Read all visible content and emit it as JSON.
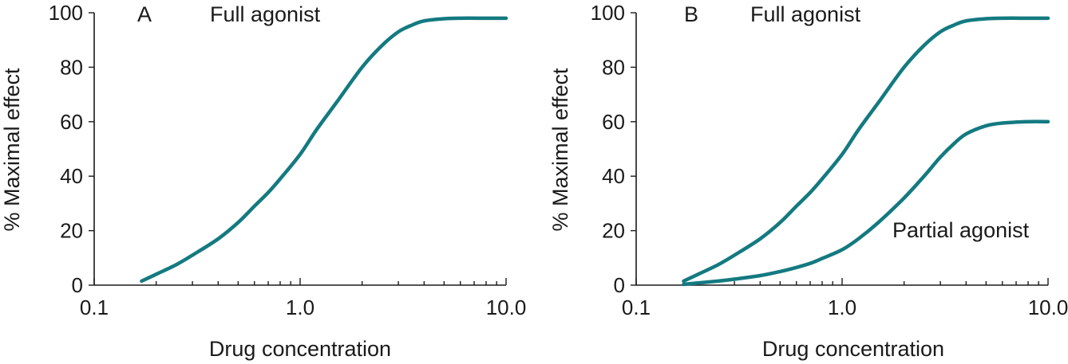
{
  "colors": {
    "curve": "#137A80",
    "axis": "#1a1a1a"
  },
  "chart_data": [
    {
      "type": "line",
      "panel_label": "A",
      "xlabel": "Drug concentration",
      "ylabel": "% Maximal effect",
      "xscale": "log",
      "xlim": [
        0.1,
        10.0
      ],
      "ylim": [
        0,
        100
      ],
      "xticks": [
        0.1,
        1.0,
        10.0
      ],
      "xtick_labels": [
        "0.1",
        "1.0",
        "10.0"
      ],
      "yticks": [
        0,
        20,
        40,
        60,
        80,
        100
      ],
      "ytick_labels": [
        "0",
        "20",
        "40",
        "60",
        "80",
        "100"
      ],
      "grid": false,
      "series": [
        {
          "name": "Full agonist",
          "x": [
            0.17,
            0.2,
            0.25,
            0.3,
            0.4,
            0.5,
            0.6,
            0.7,
            0.8,
            1.0,
            1.2,
            1.5,
            2.0,
            2.5,
            3.0,
            3.5,
            4.0,
            5.0,
            6.0,
            8.0,
            10.0
          ],
          "y": [
            1.5,
            4,
            7.5,
            11,
            17,
            23,
            29,
            34,
            39,
            48,
            57,
            67,
            80,
            88,
            93,
            95.5,
            97,
            97.8,
            98,
            98,
            98
          ]
        }
      ]
    },
    {
      "type": "line",
      "panel_label": "B",
      "xlabel": "Drug concentration",
      "ylabel": "% Maximal effect",
      "xscale": "log",
      "xlim": [
        0.1,
        10.0
      ],
      "ylim": [
        0,
        100
      ],
      "xticks": [
        0.1,
        1.0,
        10.0
      ],
      "xtick_labels": [
        "0.1",
        "1.0",
        "10.0"
      ],
      "yticks": [
        0,
        20,
        40,
        60,
        80,
        100
      ],
      "ytick_labels": [
        "0",
        "20",
        "40",
        "60",
        "80",
        "100"
      ],
      "grid": false,
      "series": [
        {
          "name": "Full agonist",
          "x": [
            0.17,
            0.2,
            0.25,
            0.3,
            0.4,
            0.5,
            0.6,
            0.7,
            0.8,
            1.0,
            1.2,
            1.5,
            2.0,
            2.5,
            3.0,
            3.5,
            4.0,
            5.0,
            6.0,
            8.0,
            10.0
          ],
          "y": [
            1.5,
            4,
            7.5,
            11,
            17,
            23,
            29,
            34,
            39,
            48,
            57,
            67,
            80,
            88,
            93,
            95.5,
            97,
            97.8,
            98,
            98,
            98
          ]
        },
        {
          "name": "Partial agonist",
          "x": [
            0.17,
            0.2,
            0.25,
            0.3,
            0.4,
            0.5,
            0.6,
            0.7,
            0.8,
            1.0,
            1.2,
            1.5,
            2.0,
            2.5,
            3.0,
            3.5,
            4.0,
            5.0,
            6.0,
            8.0,
            10.0
          ],
          "y": [
            0.3,
            0.8,
            1.5,
            2.2,
            3.5,
            5,
            6.5,
            8,
            9.8,
            13,
            17,
            23,
            32,
            40,
            47,
            52,
            55.5,
            58.5,
            59.5,
            60,
            60
          ]
        }
      ]
    }
  ]
}
